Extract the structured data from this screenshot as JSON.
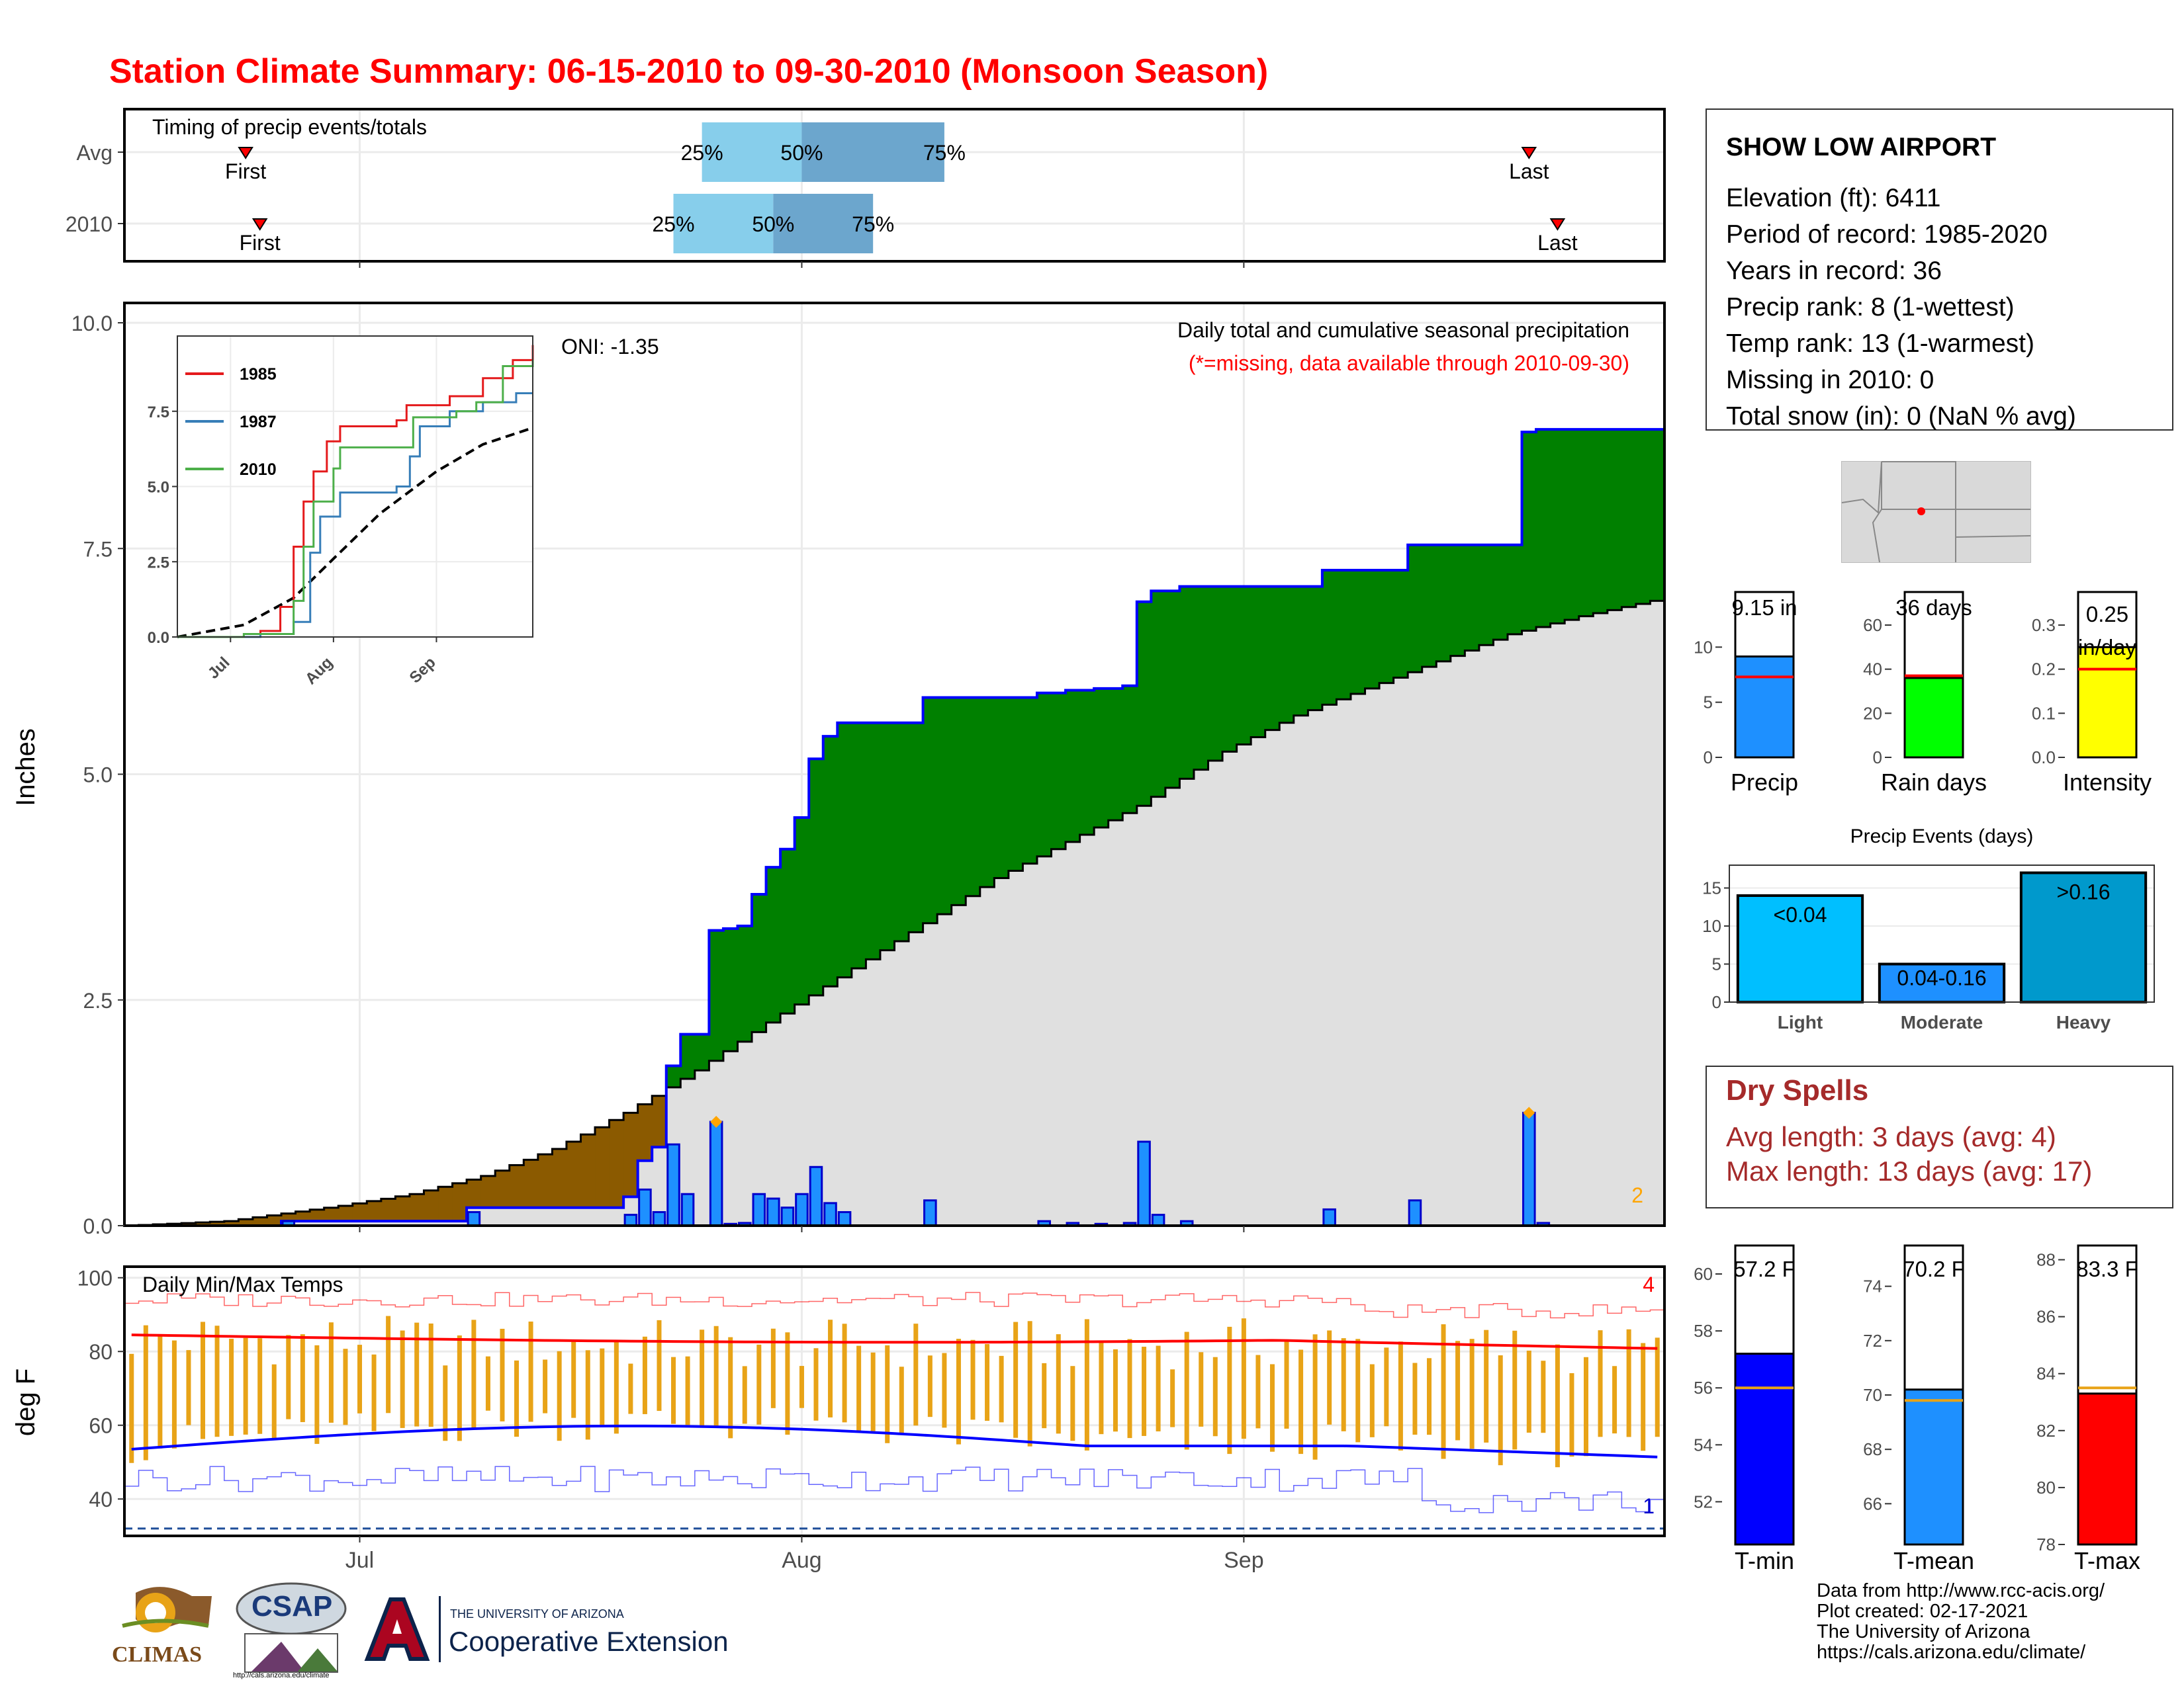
{
  "title": "Station Climate Summary: 06-15-2010 to 09-30-2010 (Monsoon Season)",
  "station": {
    "name": "SHOW LOW AIRPORT",
    "lines": [
      "Elevation (ft): 6411",
      "Period of record: 1985-2020",
      "Years in record: 36",
      "Precip rank: 8 (1-wettest)",
      "Temp rank: 13 (1-warmest)",
      "Missing in 2010: 0",
      "Total snow (in): 0 (NaN % avg)"
    ]
  },
  "dry_spells": {
    "title": "Dry Spells",
    "avg_line": "Avg length: 3 days (avg: 4)",
    "max_line": "Max length: 13 days (avg: 17)"
  },
  "credits": [
    "Data from http://www.rcc-acis.org/",
    "Plot created: 02-17-2021",
    "The University of Arizona",
    "https://cals.arizona.edu/climate/"
  ],
  "logos": {
    "climas": "CLIMAS",
    "csap": "CSAP",
    "csap_url": "http://cals.arizona.edu/climate",
    "ua_line1": "THE UNIVERSITY OF ARIZONA",
    "ua_line2": "Cooperative Extension"
  },
  "colors": {
    "title": "#ff0000",
    "accent_red": "#a52a2a",
    "precip_bar": "#1e90ff",
    "above_normal_fill": "#008000",
    "below_normal_fill": "#8b5a00",
    "normal_fill": "#e0e0e0",
    "tmax": "#ff0000",
    "tmin": "#0000ff",
    "temp_range": "#e8a317"
  },
  "chart_data": [
    {
      "id": "timing",
      "type": "bar",
      "title": "Timing of precip events/totals",
      "categories": [
        "Avg",
        "2010"
      ],
      "xrange": [
        "2010-06-15",
        "2010-09-30"
      ],
      "series": [
        {
          "category": "Avg",
          "first": "2010-06-23",
          "p25": "2010-07-25",
          "p50": "2010-08-01",
          "p75": "2010-08-11",
          "last": "2010-09-21"
        },
        {
          "category": "2010",
          "first": "2010-06-24",
          "p25": "2010-07-23",
          "p50": "2010-07-30",
          "p75": "2010-08-06",
          "last": "2010-09-23"
        }
      ],
      "labels": {
        "first": "First",
        "last": "Last",
        "p25": "25%",
        "p50": "50%",
        "p75": "75%"
      }
    },
    {
      "id": "precip",
      "type": "area",
      "title": "Daily total and cumulative seasonal precipitation",
      "subtitle": "(*=missing, data available through 2010-09-30)",
      "annotation": "ONI: -1.35",
      "corner_label": "2",
      "ylabel": "Inches",
      "ylim": [
        0,
        10
      ],
      "yticks": [
        0,
        2.5,
        5,
        7.5,
        10
      ],
      "ytick_labels": [
        "0.0",
        "2.5",
        "5.0",
        "7.5",
        "10.0"
      ],
      "xticks": [
        "Jul",
        "Aug",
        "Sep"
      ],
      "start_date": "2010-06-15",
      "daily_precip": [
        {
          "date": "2010-06-26",
          "value": 0.05
        },
        {
          "date": "2010-07-09",
          "value": 0.15
        },
        {
          "date": "2010-07-20",
          "value": 0.12
        },
        {
          "date": "2010-07-21",
          "value": 0.4
        },
        {
          "date": "2010-07-22",
          "value": 0.15
        },
        {
          "date": "2010-07-23",
          "value": 0.9
        },
        {
          "date": "2010-07-24",
          "value": 0.35
        },
        {
          "date": "2010-07-26",
          "value": 1.15
        },
        {
          "date": "2010-07-27",
          "value": 0.02
        },
        {
          "date": "2010-07-28",
          "value": 0.03
        },
        {
          "date": "2010-07-29",
          "value": 0.35
        },
        {
          "date": "2010-07-30",
          "value": 0.3
        },
        {
          "date": "2010-07-31",
          "value": 0.2
        },
        {
          "date": "2010-08-01",
          "value": 0.35
        },
        {
          "date": "2010-08-02",
          "value": 0.65
        },
        {
          "date": "2010-08-03",
          "value": 0.25
        },
        {
          "date": "2010-08-04",
          "value": 0.15
        },
        {
          "date": "2010-08-10",
          "value": 0.28
        },
        {
          "date": "2010-08-18",
          "value": 0.05
        },
        {
          "date": "2010-08-20",
          "value": 0.03
        },
        {
          "date": "2010-08-22",
          "value": 0.02
        },
        {
          "date": "2010-08-24",
          "value": 0.03
        },
        {
          "date": "2010-08-25",
          "value": 0.93
        },
        {
          "date": "2010-08-26",
          "value": 0.12
        },
        {
          "date": "2010-08-28",
          "value": 0.05
        },
        {
          "date": "2010-09-07",
          "value": 0.18
        },
        {
          "date": "2010-09-13",
          "value": 0.28
        },
        {
          "date": "2010-09-21",
          "value": 1.25
        },
        {
          "date": "2010-09-22",
          "value": 0.03
        }
      ],
      "normal_cumulative": [
        {
          "date": "2010-06-15",
          "value": 0.0
        },
        {
          "date": "2010-06-22",
          "value": 0.05
        },
        {
          "date": "2010-06-30",
          "value": 0.22
        },
        {
          "date": "2010-07-05",
          "value": 0.35
        },
        {
          "date": "2010-07-10",
          "value": 0.55
        },
        {
          "date": "2010-07-15",
          "value": 0.85
        },
        {
          "date": "2010-07-20",
          "value": 1.25
        },
        {
          "date": "2010-07-25",
          "value": 1.72
        },
        {
          "date": "2010-07-30",
          "value": 2.25
        },
        {
          "date": "2010-08-05",
          "value": 2.85
        },
        {
          "date": "2010-08-10",
          "value": 3.35
        },
        {
          "date": "2010-08-15",
          "value": 3.85
        },
        {
          "date": "2010-08-20",
          "value": 4.25
        },
        {
          "date": "2010-08-25",
          "value": 4.65
        },
        {
          "date": "2010-08-31",
          "value": 5.25
        },
        {
          "date": "2010-09-05",
          "value": 5.65
        },
        {
          "date": "2010-09-10",
          "value": 5.95
        },
        {
          "date": "2010-09-15",
          "value": 6.25
        },
        {
          "date": "2010-09-20",
          "value": 6.55
        },
        {
          "date": "2010-09-25",
          "value": 6.75
        },
        {
          "date": "2010-09-30",
          "value": 6.92
        }
      ],
      "inset": {
        "ylim": [
          0,
          10
        ],
        "yticks": [
          0,
          2.5,
          5,
          7.5
        ],
        "ytick_labels": [
          "0.0",
          "2.5",
          "5.0",
          "7.5"
        ],
        "xticks": [
          "Jul",
          "Aug",
          "Sep"
        ],
        "series": [
          {
            "name": "1985",
            "color": "#e41a1c",
            "values": [
              {
                "date": "2010-06-15",
                "value": 0.0
              },
              {
                "date": "2010-07-10",
                "value": 0.2
              },
              {
                "date": "2010-07-16",
                "value": 1.0
              },
              {
                "date": "2010-07-20",
                "value": 3.0
              },
              {
                "date": "2010-07-23",
                "value": 4.5
              },
              {
                "date": "2010-07-26",
                "value": 5.5
              },
              {
                "date": "2010-07-30",
                "value": 6.5
              },
              {
                "date": "2010-08-03",
                "value": 7.0
              },
              {
                "date": "2010-08-20",
                "value": 7.2
              },
              {
                "date": "2010-08-23",
                "value": 7.7
              },
              {
                "date": "2010-09-05",
                "value": 8.0
              },
              {
                "date": "2010-09-15",
                "value": 8.6
              },
              {
                "date": "2010-09-24",
                "value": 9.2
              },
              {
                "date": "2010-09-30",
                "value": 9.7
              }
            ]
          },
          {
            "name": "1987",
            "color": "#377eb8",
            "values": [
              {
                "date": "2010-06-15",
                "value": 0.0
              },
              {
                "date": "2010-07-10",
                "value": 0.1
              },
              {
                "date": "2010-07-20",
                "value": 0.5
              },
              {
                "date": "2010-07-25",
                "value": 2.8
              },
              {
                "date": "2010-07-28",
                "value": 4.0
              },
              {
                "date": "2010-08-03",
                "value": 4.8
              },
              {
                "date": "2010-08-20",
                "value": 5.0
              },
              {
                "date": "2010-08-24",
                "value": 6.0
              },
              {
                "date": "2010-08-27",
                "value": 7.0
              },
              {
                "date": "2010-09-05",
                "value": 7.5
              },
              {
                "date": "2010-09-15",
                "value": 7.8
              },
              {
                "date": "2010-09-25",
                "value": 8.1
              },
              {
                "date": "2010-09-30",
                "value": 8.1
              }
            ]
          },
          {
            "name": "2010",
            "color": "#4daf4a",
            "values": [
              {
                "date": "2010-06-15",
                "value": 0.0
              },
              {
                "date": "2010-07-05",
                "value": 0.1
              },
              {
                "date": "2010-07-20",
                "value": 1.2
              },
              {
                "date": "2010-07-23",
                "value": 3.0
              },
              {
                "date": "2010-07-26",
                "value": 4.5
              },
              {
                "date": "2010-08-01",
                "value": 5.6
              },
              {
                "date": "2010-08-03",
                "value": 6.3
              },
              {
                "date": "2010-08-25",
                "value": 7.3
              },
              {
                "date": "2010-09-07",
                "value": 7.5
              },
              {
                "date": "2010-09-13",
                "value": 7.8
              },
              {
                "date": "2010-09-21",
                "value": 9.0
              },
              {
                "date": "2010-09-30",
                "value": 9.2
              }
            ]
          }
        ],
        "normal_values": [
          {
            "date": "2010-06-15",
            "value": 0.0
          },
          {
            "date": "2010-07-05",
            "value": 0.4
          },
          {
            "date": "2010-07-20",
            "value": 1.3
          },
          {
            "date": "2010-08-01",
            "value": 2.6
          },
          {
            "date": "2010-08-15",
            "value": 4.1
          },
          {
            "date": "2010-09-01",
            "value": 5.5
          },
          {
            "date": "2010-09-15",
            "value": 6.4
          },
          {
            "date": "2010-09-30",
            "value": 6.95
          }
        ]
      }
    },
    {
      "id": "stats",
      "type": "bar",
      "panels": [
        {
          "category": "Precip",
          "label": "9.15 in",
          "value": 9.15,
          "avg": 7.3,
          "color": "#1e90ff",
          "ylim": [
            0,
            15
          ],
          "yticks": [
            0,
            5,
            10
          ]
        },
        {
          "category": "Rain days",
          "label": "36 days",
          "value": 36,
          "avg": 37,
          "color": "#00ff00",
          "ylim": [
            0,
            75
          ],
          "yticks": [
            0,
            20,
            40,
            60
          ]
        },
        {
          "category": "Intensity",
          "label": "0.25 in/day",
          "value": 0.25,
          "avg": 0.2,
          "color": "#ffff00",
          "ylim": [
            0,
            0.375
          ],
          "yticks": [
            0.0,
            0.1,
            0.2,
            0.3
          ],
          "ytick_labels": [
            "0.0",
            "0.1",
            "0.2",
            "0.3"
          ]
        }
      ]
    },
    {
      "id": "events",
      "type": "bar",
      "title": "Precip Events (days)",
      "categories": [
        "Light",
        "Moderate",
        "Heavy"
      ],
      "bar_labels": [
        "<0.04",
        "0.04-0.16",
        ">0.16"
      ],
      "values": [
        14,
        5,
        17
      ],
      "colors": [
        "#00bfff",
        "#1e90ff",
        "#0099cc"
      ],
      "ylim": [
        0,
        18
      ],
      "yticks": [
        0,
        5,
        10,
        15
      ]
    },
    {
      "id": "temps",
      "type": "line",
      "title": "Daily Min/Max Temps",
      "ylabel": "deg F",
      "ylim": [
        30,
        103
      ],
      "yticks": [
        40,
        60,
        80,
        100
      ],
      "xticks": [
        "Jul",
        "Aug",
        "Sep"
      ],
      "corner_high": "4",
      "corner_low": "1",
      "freeze_line": 32
    },
    {
      "id": "temp_stats",
      "type": "bar",
      "panels": [
        {
          "category": "T-min",
          "label": "57.2 F",
          "value": 57.2,
          "avg": 56.0,
          "color": "#0000ff",
          "ylim": [
            50.5,
            61
          ],
          "yticks": [
            52,
            54,
            56,
            58,
            60
          ]
        },
        {
          "category": "T-mean",
          "label": "70.2 F",
          "value": 70.2,
          "avg": 69.8,
          "color": "#1e90ff",
          "ylim": [
            64.5,
            75.5
          ],
          "yticks": [
            66,
            68,
            70,
            72,
            74
          ]
        },
        {
          "category": "T-max",
          "label": "83.3 F",
          "value": 83.3,
          "avg": 83.5,
          "color": "#ff0000",
          "ylim": [
            78,
            88.5
          ],
          "yticks": [
            78,
            80,
            82,
            84,
            86,
            88
          ]
        }
      ]
    }
  ]
}
